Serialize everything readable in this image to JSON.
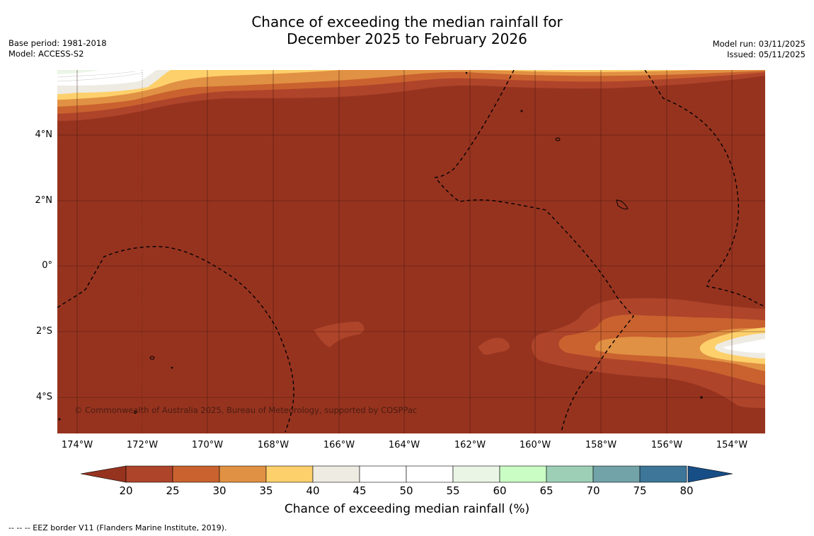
{
  "title": {
    "line1": "Chance of exceeding the median rainfall for",
    "line2": "December 2025 to February 2026"
  },
  "meta_left": {
    "base_period": "Base period: 1981-2018",
    "model": "Model: ACCESS-S2"
  },
  "meta_right": {
    "model_run": "Model run: 03/11/2025",
    "issued": "Issued: 05/11/2025"
  },
  "map": {
    "latitude_labels": [
      "4°N",
      "2°N",
      "0°",
      "2°S",
      "4°S"
    ],
    "longitude_labels": [
      "174°W",
      "172°W",
      "170°W",
      "168°W",
      "166°W",
      "164°W",
      "162°W",
      "160°W",
      "158°W",
      "156°W",
      "154°W"
    ],
    "copyright": "© Commonwealth of Australia 2025, Bureau of Meteorology, supported by COSPPac",
    "background_class_color": "#96331f"
  },
  "colorbar": {
    "title": "Chance of exceeding median rainfall (%)",
    "ticks": [
      "20",
      "25",
      "30",
      "35",
      "40",
      "45",
      "50",
      "55",
      "60",
      "65",
      "70",
      "75",
      "80"
    ],
    "colors": [
      "#ae442a",
      "#c9622f",
      "#e19143",
      "#fdd06b",
      "#eeebe3",
      "#ffffff",
      "#ffffff",
      "#eaf5e6",
      "#c9fdc4",
      "#9ccfb6",
      "#71a3a8",
      "#3d7698"
    ],
    "low_extension_color": "#96331f",
    "high_extension_color": "#174e86"
  },
  "footnote": {
    "eez": "--  --  -- EEZ border V11 (Flanders Marine Institute, 2019)."
  }
}
